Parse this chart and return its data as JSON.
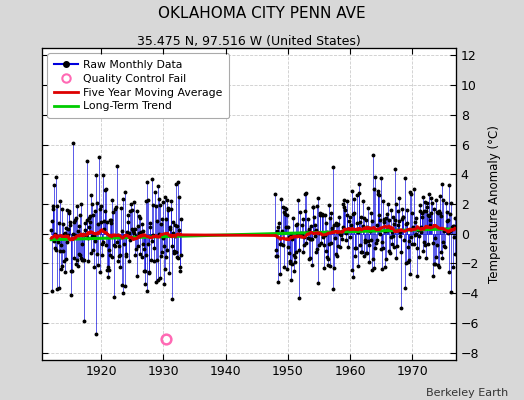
{
  "title": "OKLAHOMA CITY PENN AVE",
  "subtitle": "35.475 N, 97.516 W (United States)",
  "ylabel": "Temperature Anomaly (°C)",
  "attribution": "Berkeley Earth",
  "xlim": [
    1910.5,
    1977
  ],
  "ylim": [
    -8.5,
    12.5
  ],
  "yticks": [
    -8,
    -6,
    -4,
    -2,
    0,
    2,
    4,
    6,
    8,
    10,
    12
  ],
  "xticks": [
    1920,
    1930,
    1940,
    1950,
    1960,
    1970
  ],
  "fig_bg": "#d8d8d8",
  "plot_bg": "#ffffff",
  "raw_color": "#0000dd",
  "dot_color": "#000000",
  "qc_fail_color": "#ff69b4",
  "moving_avg_color": "#dd0000",
  "trend_color": "#00cc00",
  "trend_x": [
    1912,
    1976
  ],
  "trend_y": [
    -0.4,
    0.32
  ],
  "seg1_start": 1912,
  "seg1_end": 1932,
  "seg2_start": 1948,
  "seg2_end": 1976,
  "qc_fail_year": 1930.5,
  "qc_fail_value": -7.1,
  "noise1": 1.9,
  "noise2": 1.6,
  "seed": 17
}
